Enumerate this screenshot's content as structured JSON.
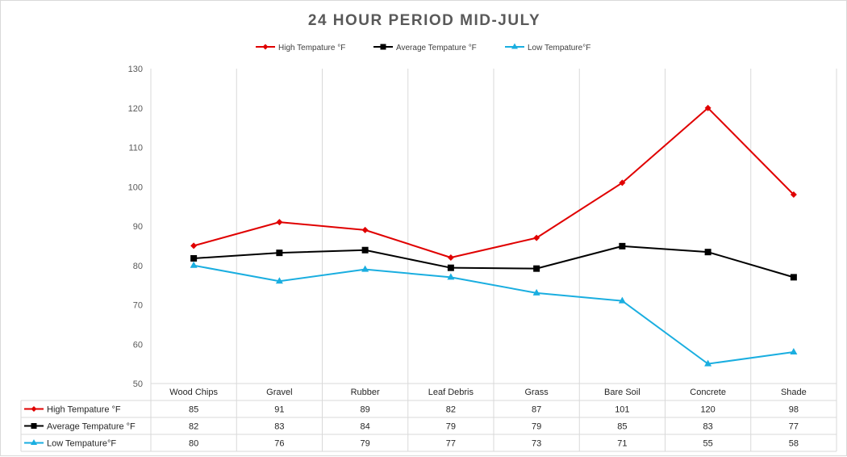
{
  "chart_data": {
    "type": "line",
    "title": "24 HOUR PERIOD MID-JULY",
    "categories": [
      "Wood Chips",
      "Gravel",
      "Rubber",
      "Leaf Debris",
      "Grass",
      "Bare Soil",
      "Concrete",
      "Shade"
    ],
    "series": [
      {
        "name": "High Tempature °F",
        "values": [
          85,
          91,
          89,
          82,
          87,
          101,
          120,
          98
        ],
        "color": "#e00000",
        "marker": "diamond"
      },
      {
        "name": "Average Tempature °F",
        "values": [
          82,
          83,
          84,
          79,
          79,
          85,
          83,
          77
        ],
        "color": "#000000",
        "marker": "square"
      },
      {
        "name": "Low Tempature°F",
        "values": [
          80,
          76,
          79,
          77,
          73,
          71,
          55,
          58
        ],
        "color": "#1aaee0",
        "marker": "triangle"
      }
    ],
    "line_values": {
      "Average Tempature °F": [
        81.8,
        83.2,
        83.9,
        79.4,
        79.2,
        84.9,
        83.4,
        77
      ]
    },
    "ylim": [
      50,
      130
    ],
    "yticks": [
      50,
      60,
      70,
      80,
      90,
      100,
      110,
      120,
      130
    ],
    "grid": "vertical",
    "legend_position": "top",
    "data_table": true
  }
}
